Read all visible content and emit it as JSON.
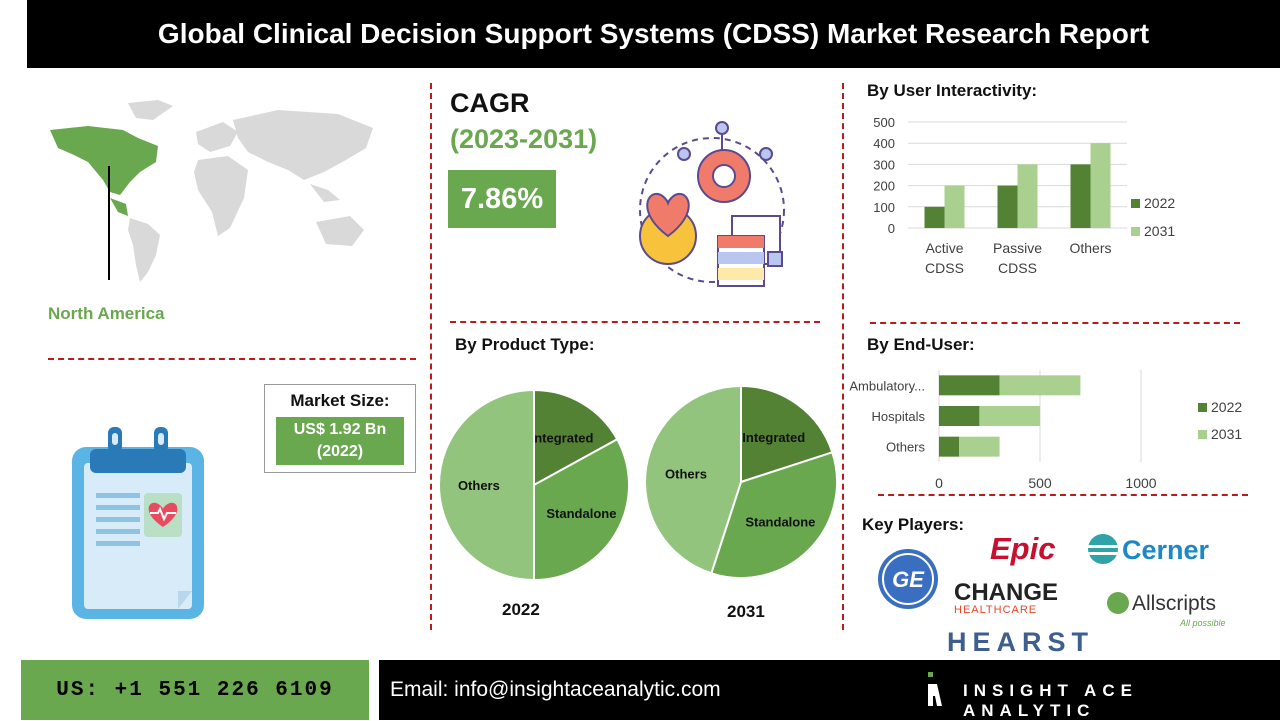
{
  "header": {
    "title": "Global Clinical Decision Support Systems (CDSS) Market Research Report"
  },
  "region": {
    "label": "North America"
  },
  "cagr": {
    "label": "CAGR",
    "period": "(2023-2031)",
    "value": "7.86%"
  },
  "market_size": {
    "label": "Market Size:",
    "value": "US$ 1.92 Bn",
    "year": "(2022)"
  },
  "colors": {
    "dark_green": "#548235",
    "light_green": "#a9d08e",
    "mid_green": "#6aa84f",
    "dash_red": "#b91c1c"
  },
  "icons": [
    "world-map-icon",
    "gear-heart-icon",
    "clipboard-icon"
  ],
  "key_players": {
    "label": "Key Players:",
    "logos": [
      "Epic",
      "Cerner",
      "CHANGE",
      "HEALTHCARE",
      "Allscripts",
      "All possible",
      "HEARST",
      "GE"
    ]
  },
  "footer": {
    "phone": "US: +1 551 226 6109",
    "email": "Email: info@insightaceanalytic.com",
    "brand": "INSIGHT ACE ANALYTIC"
  },
  "chart_data": [
    {
      "type": "bar",
      "title": "By User Interactivity:",
      "categories": [
        "Active CDSS",
        "Passive CDSS",
        "Others"
      ],
      "series": [
        {
          "name": "2022",
          "values": [
            100,
            200,
            300
          ]
        },
        {
          "name": "2031",
          "values": [
            200,
            300,
            400
          ]
        }
      ],
      "ylim": [
        0,
        500
      ],
      "yticks": [
        0,
        100,
        200,
        300,
        400,
        500
      ],
      "legend": "right",
      "grid": true
    },
    {
      "type": "bar",
      "orientation": "horizontal",
      "stacked": true,
      "title": "By  End-User:",
      "categories": [
        "Ambulatory...",
        "Hospitals",
        "Others"
      ],
      "series": [
        {
          "name": "2022",
          "values": [
            300,
            200,
            100
          ]
        },
        {
          "name": "2031",
          "values": [
            400,
            300,
            200
          ]
        }
      ],
      "xlim": [
        0,
        1200
      ],
      "xticks": [
        0,
        500,
        1000
      ],
      "legend": "right",
      "grid": true
    },
    {
      "type": "pie",
      "title": "By Product Type:",
      "caption": "2022",
      "slices": [
        {
          "label": "Integrated",
          "value": 17
        },
        {
          "label": "Standalone",
          "value": 33
        },
        {
          "label": "Others",
          "value": 50
        }
      ]
    },
    {
      "type": "pie",
      "caption": "2031",
      "slices": [
        {
          "label": "Integrated",
          "value": 20
        },
        {
          "label": "Standalone",
          "value": 35
        },
        {
          "label": "Others",
          "value": 45
        }
      ]
    }
  ]
}
